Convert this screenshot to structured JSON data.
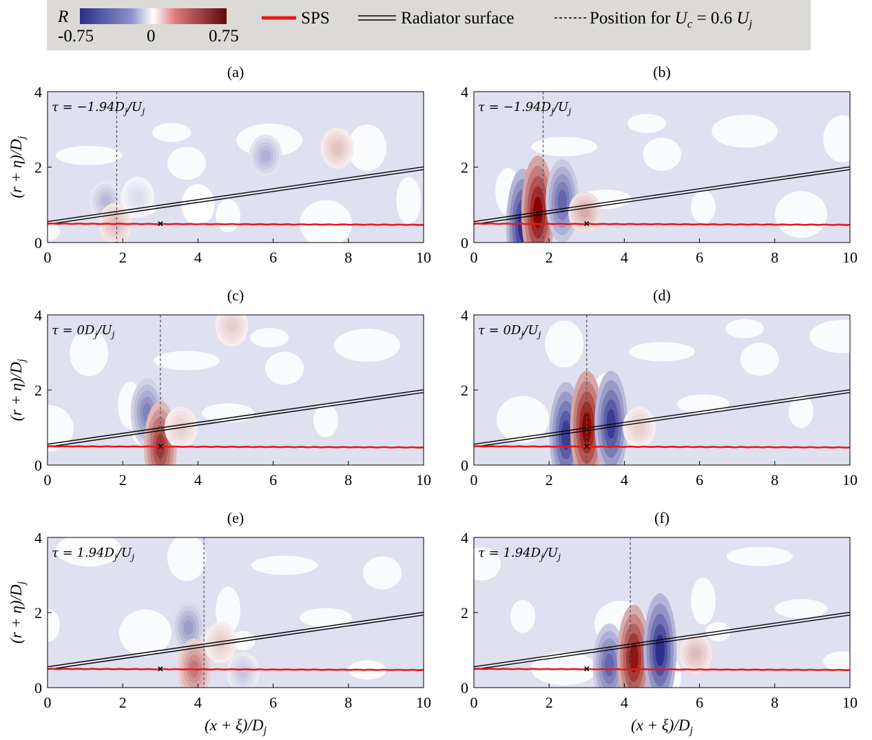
{
  "legend": {
    "colorbar_symbol": "R",
    "colorbar_ticks": [
      "-0.75",
      "0",
      "0.75"
    ],
    "sps_label": "SPS",
    "radiator_label": "Radiator surface",
    "position_label_prefix": "Position for ",
    "position_label_uc": "U",
    "position_label_uc_sub": "c",
    "position_label_mid": " = 0.6 ",
    "position_label_uj": "U",
    "position_label_uj_sub": "j",
    "colors": {
      "negative": "#2b2d8c",
      "positive": "#8b0000",
      "sps": "#e31a1c",
      "radiator": "#000000"
    }
  },
  "chart_data": [
    {
      "type": "heatmap",
      "title": "(a)",
      "annotation": "τ = −1.94D_j/U_j",
      "tau": -1.94,
      "convective_line_x": 1.84,
      "probe": {
        "x": 3.0,
        "y": 0.5
      },
      "xlabel": "",
      "ylabel": "(r + η)/D_j",
      "xlim": [
        0,
        10
      ],
      "ylim": [
        0,
        4
      ],
      "x_ticks": [
        "0",
        "2",
        "4",
        "6",
        "8",
        "10"
      ],
      "y_ticks": [
        "0",
        "2",
        "4"
      ],
      "blobs": [
        {
          "x": 1.55,
          "y": 1.1,
          "value": -0.25
        },
        {
          "x": 1.8,
          "y": 0.5,
          "value": 0.2
        },
        {
          "x": 2.4,
          "y": 1.2,
          "value": -0.12
        },
        {
          "x": 4.0,
          "y": 1.0,
          "value": 0.0
        },
        {
          "x": 5.8,
          "y": 2.3,
          "value": -0.28
        },
        {
          "x": 7.7,
          "y": 2.5,
          "value": 0.18
        }
      ]
    },
    {
      "type": "heatmap",
      "title": "(b)",
      "annotation": "τ = −1.94D_j/U_j",
      "tau": -1.94,
      "convective_line_x": 1.84,
      "probe": {
        "x": 3.0,
        "y": 0.5
      },
      "xlabel": "",
      "ylabel": "",
      "xlim": [
        0,
        10
      ],
      "ylim": [
        0,
        4
      ],
      "x_ticks": [
        "0",
        "2",
        "4",
        "6",
        "8",
        "10"
      ],
      "y_ticks": [
        "0",
        "2",
        "4"
      ],
      "blobs": [
        {
          "x": 1.3,
          "y": 0.45,
          "value": -0.75
        },
        {
          "x": 1.7,
          "y": 0.8,
          "value": 0.75
        },
        {
          "x": 2.35,
          "y": 1.1,
          "value": -0.55
        },
        {
          "x": 2.95,
          "y": 0.8,
          "value": 0.25
        }
      ]
    },
    {
      "type": "heatmap",
      "title": "(c)",
      "annotation": "τ = 0D_j/U_j",
      "tau": 0,
      "convective_line_x": 3.0,
      "probe": {
        "x": 3.0,
        "y": 0.5
      },
      "xlabel": "",
      "ylabel": "(r + η)/D_j",
      "xlim": [
        0,
        10
      ],
      "ylim": [
        0,
        4
      ],
      "x_ticks": [
        "0",
        "2",
        "4",
        "6",
        "8",
        "10"
      ],
      "y_ticks": [
        "0",
        "2",
        "4"
      ],
      "blobs": [
        {
          "x": 2.65,
          "y": 1.4,
          "value": -0.45
        },
        {
          "x": 3.0,
          "y": 0.5,
          "value": 0.6
        },
        {
          "x": 3.55,
          "y": 1.0,
          "value": 0.15
        },
        {
          "x": 4.9,
          "y": 3.7,
          "value": 0.15
        }
      ]
    },
    {
      "type": "heatmap",
      "title": "(d)",
      "annotation": "τ = 0D_j/U_j",
      "tau": 0,
      "convective_line_x": 3.0,
      "probe": {
        "x": 3.0,
        "y": 0.5
      },
      "xlabel": "",
      "ylabel": "",
      "xlim": [
        0,
        10
      ],
      "ylim": [
        0,
        4
      ],
      "x_ticks": [
        "0",
        "2",
        "4",
        "6",
        "8",
        "10"
      ],
      "y_ticks": [
        "0",
        "2",
        "4"
      ],
      "blobs": [
        {
          "x": 2.45,
          "y": 0.8,
          "value": -0.7
        },
        {
          "x": 3.0,
          "y": 1.0,
          "value": 0.75
        },
        {
          "x": 3.65,
          "y": 1.1,
          "value": -0.7
        },
        {
          "x": 4.4,
          "y": 1.0,
          "value": 0.15
        }
      ]
    },
    {
      "type": "heatmap",
      "title": "(e)",
      "annotation": "τ = 1.94D_j/U_j",
      "tau": 1.94,
      "convective_line_x": 4.16,
      "probe": {
        "x": 3.0,
        "y": 0.5
      },
      "xlabel": "(x + ξ)/D_j",
      "ylabel": "(r + η)/D_j",
      "xlim": [
        0,
        10
      ],
      "ylim": [
        0,
        4
      ],
      "x_ticks": [
        "0",
        "2",
        "4",
        "6",
        "8",
        "10"
      ],
      "y_ticks": [
        "0",
        "2",
        "4"
      ],
      "blobs": [
        {
          "x": 3.75,
          "y": 1.6,
          "value": -0.35
        },
        {
          "x": 3.9,
          "y": 0.5,
          "value": 0.4
        },
        {
          "x": 4.6,
          "y": 1.2,
          "value": 0.15
        },
        {
          "x": 5.2,
          "y": 0.4,
          "value": -0.2
        }
      ]
    },
    {
      "type": "heatmap",
      "title": "(f)",
      "annotation": "τ = 1.94D_j/U_j",
      "tau": 1.94,
      "convective_line_x": 4.16,
      "probe": {
        "x": 3.0,
        "y": 0.5
      },
      "xlabel": "(x + ξ)/D_j",
      "ylabel": "",
      "xlim": [
        0,
        10
      ],
      "ylim": [
        0,
        4
      ],
      "x_ticks": [
        "0",
        "2",
        "4",
        "6",
        "8",
        "10"
      ],
      "y_ticks": [
        "0",
        "2",
        "4"
      ],
      "blobs": [
        {
          "x": 3.6,
          "y": 0.6,
          "value": -0.55
        },
        {
          "x": 4.25,
          "y": 0.8,
          "value": 0.7
        },
        {
          "x": 4.95,
          "y": 1.0,
          "value": -0.75
        },
        {
          "x": 5.9,
          "y": 0.9,
          "value": 0.2
        }
      ]
    }
  ]
}
